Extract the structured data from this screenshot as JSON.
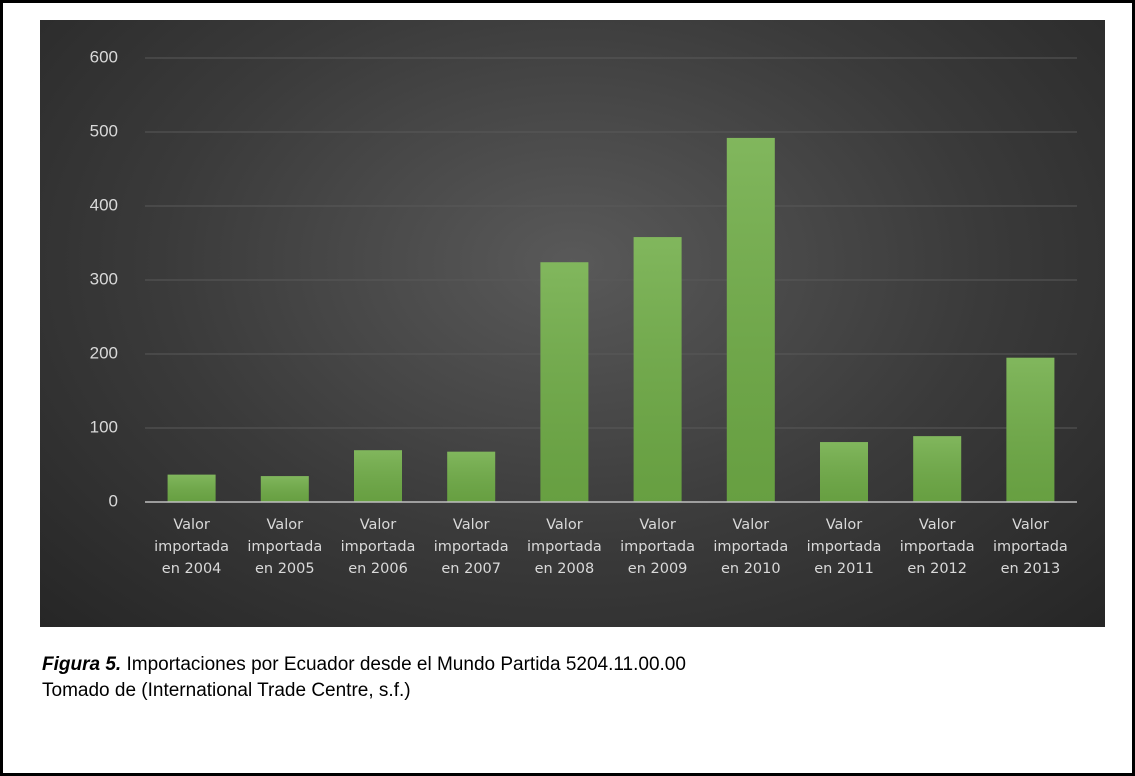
{
  "chart_data": {
    "type": "bar",
    "categories": [
      "Valor importada en 2004",
      "Valor importada en 2005",
      "Valor importada en 2006",
      "Valor importada en 2007",
      "Valor importada en 2008",
      "Valor importada en 2009",
      "Valor importada en 2010",
      "Valor importada en 2011",
      "Valor importada en 2012",
      "Valor importada en 2013"
    ],
    "values": [
      37,
      35,
      70,
      68,
      324,
      358,
      492,
      81,
      89,
      195
    ],
    "color": "#70ad47",
    "ylim": [
      0,
      600
    ],
    "yticks": [
      0,
      100,
      200,
      300,
      400,
      500,
      600
    ],
    "grid": true
  },
  "caption": {
    "label": "Figura  5.",
    "text": "Importaciones por Ecuador desde el Mundo Partida 5204.11.00.00",
    "source": "Tomado de (International Trade Centre, s.f.)"
  }
}
